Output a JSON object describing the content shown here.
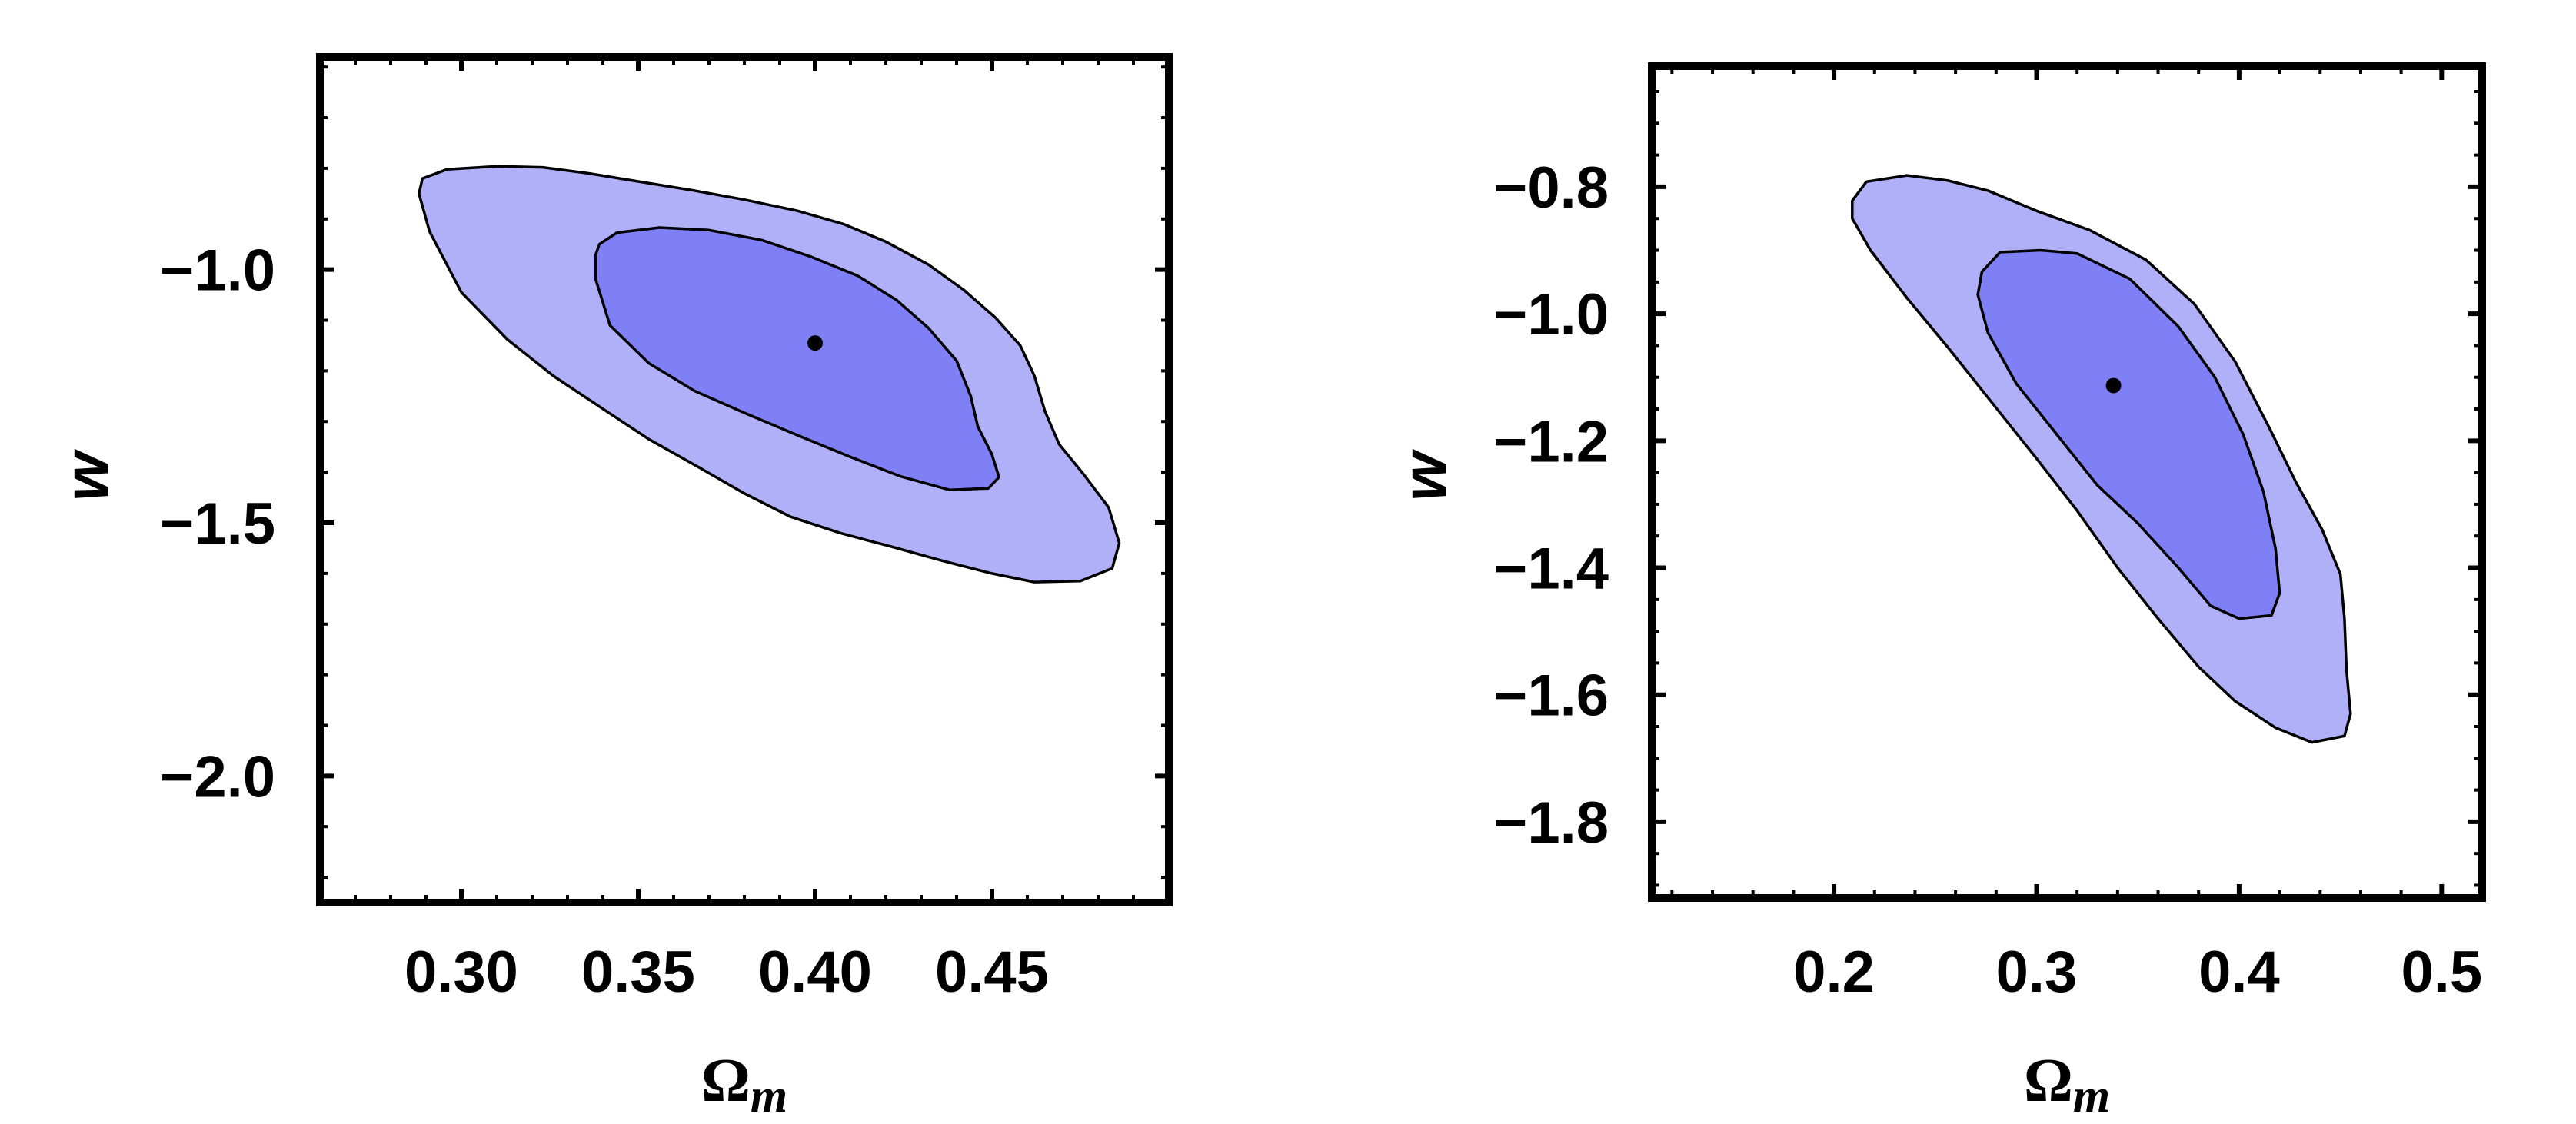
{
  "chart_data": [
    {
      "type": "contour",
      "title": "",
      "xlabel": "Ωm",
      "xlabel_main": "Ω",
      "xlabel_sub": "m",
      "ylabel": "w",
      "xlim": [
        0.26,
        0.5
      ],
      "ylim": [
        -2.25,
        -0.58
      ],
      "xticks": [
        0.3,
        0.35,
        0.4,
        0.45
      ],
      "xtick_labels": [
        "0.30",
        "0.35",
        "0.40",
        "0.45"
      ],
      "yticks": [
        -1.0,
        -1.5,
        -2.0
      ],
      "ytick_labels": [
        "−1.0",
        "−1.5",
        "−2.0"
      ],
      "xminor": 0.01,
      "yminor": 0.1,
      "best_fit": {
        "x": 0.4,
        "y": -1.145
      },
      "colors": {
        "outer": "#b0b0f8",
        "inner": "#8080f6",
        "point": "#000000"
      },
      "contours": [
        {
          "name": "2-sigma",
          "points": [
            [
              0.289,
              -0.82
            ],
            [
              0.296,
              -0.802
            ],
            [
              0.31,
              -0.796
            ],
            [
              0.323,
              -0.798
            ],
            [
              0.336,
              -0.81
            ],
            [
              0.35,
              -0.826
            ],
            [
              0.365,
              -0.843
            ],
            [
              0.38,
              -0.862
            ],
            [
              0.395,
              -0.884
            ],
            [
              0.408,
              -0.91
            ],
            [
              0.42,
              -0.945
            ],
            [
              0.432,
              -0.99
            ],
            [
              0.442,
              -1.04
            ],
            [
              0.451,
              -1.095
            ],
            [
              0.458,
              -1.15
            ],
            [
              0.462,
              -1.21
            ],
            [
              0.465,
              -1.28
            ],
            [
              0.469,
              -1.345
            ],
            [
              0.476,
              -1.405
            ],
            [
              0.483,
              -1.47
            ],
            [
              0.486,
              -1.54
            ],
            [
              0.484,
              -1.59
            ],
            [
              0.475,
              -1.615
            ],
            [
              0.462,
              -1.617
            ],
            [
              0.45,
              -1.6
            ],
            [
              0.436,
              -1.575
            ],
            [
              0.422,
              -1.548
            ],
            [
              0.407,
              -1.52
            ],
            [
              0.393,
              -1.488
            ],
            [
              0.38,
              -1.442
            ],
            [
              0.367,
              -1.39
            ],
            [
              0.353,
              -1.335
            ],
            [
              0.34,
              -1.275
            ],
            [
              0.326,
              -1.21
            ],
            [
              0.313,
              -1.138
            ],
            [
              0.3,
              -1.045
            ],
            [
              0.291,
              -0.925
            ],
            [
              0.288,
              -0.85
            ]
          ]
        },
        {
          "name": "1-sigma",
          "points": [
            [
              0.339,
              -0.95
            ],
            [
              0.344,
              -0.927
            ],
            [
              0.356,
              -0.917
            ],
            [
              0.37,
              -0.922
            ],
            [
              0.385,
              -0.942
            ],
            [
              0.399,
              -0.975
            ],
            [
              0.412,
              -1.012
            ],
            [
              0.423,
              -1.06
            ],
            [
              0.432,
              -1.115
            ],
            [
              0.44,
              -1.18
            ],
            [
              0.444,
              -1.25
            ],
            [
              0.446,
              -1.31
            ],
            [
              0.45,
              -1.365
            ],
            [
              0.452,
              -1.41
            ],
            [
              0.449,
              -1.432
            ],
            [
              0.438,
              -1.435
            ],
            [
              0.424,
              -1.408
            ],
            [
              0.41,
              -1.37
            ],
            [
              0.396,
              -1.33
            ],
            [
              0.381,
              -1.286
            ],
            [
              0.366,
              -1.24
            ],
            [
              0.353,
              -1.185
            ],
            [
              0.342,
              -1.11
            ],
            [
              0.338,
              -1.02
            ],
            [
              0.338,
              -0.97
            ]
          ]
        }
      ]
    },
    {
      "type": "contour",
      "title": "",
      "xlabel": "Ωm",
      "xlabel_main": "Ω",
      "xlabel_sub": "m",
      "ylabel": "w",
      "xlim": [
        0.11,
        0.52
      ],
      "ylim": [
        -1.92,
        -0.61
      ],
      "xticks": [
        0.2,
        0.3,
        0.4,
        0.5
      ],
      "xtick_labels": [
        "0.2",
        "0.3",
        "0.4",
        "0.5"
      ],
      "yticks": [
        -0.8,
        -1.0,
        -1.2,
        -1.4,
        -1.6,
        -1.8
      ],
      "ytick_labels": [
        "−0.8",
        "−1.0",
        "−1.2",
        "−1.4",
        "−1.6",
        "−1.8"
      ],
      "xminor": 0.02,
      "yminor": 0.05,
      "best_fit": {
        "x": 0.338,
        "y": -1.113
      },
      "colors": {
        "outer": "#b0b0f8",
        "inner": "#8080f6",
        "point": "#000000"
      },
      "contours": [
        {
          "name": "2-sigma",
          "points": [
            [
              0.209,
              -0.822
            ],
            [
              0.216,
              -0.792
            ],
            [
              0.236,
              -0.782
            ],
            [
              0.256,
              -0.79
            ],
            [
              0.276,
              -0.806
            ],
            [
              0.3,
              -0.838
            ],
            [
              0.326,
              -0.868
            ],
            [
              0.354,
              -0.915
            ],
            [
              0.378,
              -0.985
            ],
            [
              0.398,
              -1.075
            ],
            [
              0.415,
              -1.18
            ],
            [
              0.428,
              -1.265
            ],
            [
              0.441,
              -1.34
            ],
            [
              0.45,
              -1.41
            ],
            [
              0.452,
              -1.48
            ],
            [
              0.453,
              -1.56
            ],
            [
              0.455,
              -1.63
            ],
            [
              0.452,
              -1.665
            ],
            [
              0.436,
              -1.675
            ],
            [
              0.418,
              -1.652
            ],
            [
              0.398,
              -1.61
            ],
            [
              0.38,
              -1.556
            ],
            [
              0.36,
              -1.48
            ],
            [
              0.34,
              -1.4
            ],
            [
              0.32,
              -1.31
            ],
            [
              0.3,
              -1.228
            ],
            [
              0.278,
              -1.14
            ],
            [
              0.256,
              -1.052
            ],
            [
              0.236,
              -0.975
            ],
            [
              0.218,
              -0.9
            ],
            [
              0.209,
              -0.85
            ]
          ]
        },
        {
          "name": "1-sigma",
          "points": [
            [
              0.273,
              -0.934
            ],
            [
              0.282,
              -0.903
            ],
            [
              0.302,
              -0.9
            ],
            [
              0.32,
              -0.905
            ],
            [
              0.346,
              -0.945
            ],
            [
              0.37,
              -1.02
            ],
            [
              0.388,
              -1.1
            ],
            [
              0.402,
              -1.19
            ],
            [
              0.412,
              -1.28
            ],
            [
              0.418,
              -1.37
            ],
            [
              0.42,
              -1.44
            ],
            [
              0.416,
              -1.475
            ],
            [
              0.4,
              -1.48
            ],
            [
              0.386,
              -1.46
            ],
            [
              0.37,
              -1.4
            ],
            [
              0.35,
              -1.33
            ],
            [
              0.33,
              -1.27
            ],
            [
              0.31,
              -1.19
            ],
            [
              0.29,
              -1.11
            ],
            [
              0.276,
              -1.03
            ],
            [
              0.271,
              -0.97
            ]
          ]
        }
      ]
    }
  ]
}
